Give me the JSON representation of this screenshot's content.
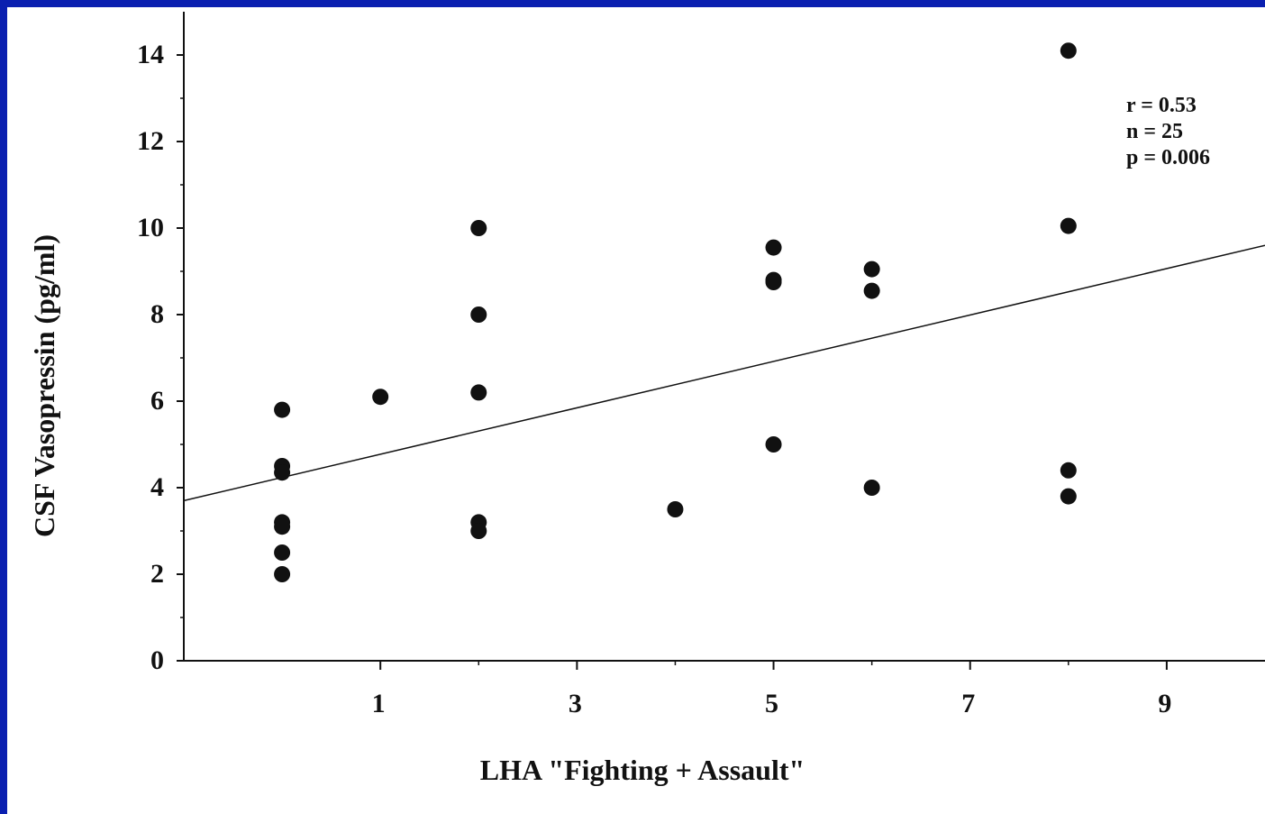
{
  "colors": {
    "background": "#0a1fb0",
    "plot_bg": "#ffffff",
    "ink": "#111111"
  },
  "chart_data": {
    "type": "scatter",
    "title": "",
    "xlabel": "LHA \"Fighting + Assault\"",
    "ylabel": "CSF Vasopressin (pg/ml)",
    "xlim": [
      -1,
      10
    ],
    "ylim": [
      0,
      15
    ],
    "x_ticks": [
      1,
      3,
      5,
      7,
      9
    ],
    "x_minor_ticks": [
      2,
      4,
      6,
      8
    ],
    "y_ticks": [
      0,
      2,
      4,
      6,
      8,
      10,
      12,
      14
    ],
    "y_minor_ticks": [
      1,
      3,
      5,
      7,
      9,
      11,
      13
    ],
    "grid": false,
    "legend": "none",
    "series": [
      {
        "points": [
          [
            0,
            5.8
          ],
          [
            0,
            4.5
          ],
          [
            0,
            4.35
          ],
          [
            0,
            3.2
          ],
          [
            0,
            3.1
          ],
          [
            0,
            2.5
          ],
          [
            0,
            2.0
          ],
          [
            1,
            6.1
          ],
          [
            2,
            10.0
          ],
          [
            2,
            8.0
          ],
          [
            2,
            6.2
          ],
          [
            2,
            3.2
          ],
          [
            2,
            3.0
          ],
          [
            4,
            3.5
          ],
          [
            5,
            9.55
          ],
          [
            5,
            8.8
          ],
          [
            5,
            8.75
          ],
          [
            5,
            5.0
          ],
          [
            6,
            9.05
          ],
          [
            6,
            8.55
          ],
          [
            6,
            4.0
          ],
          [
            8,
            14.1
          ],
          [
            8,
            10.05
          ],
          [
            8,
            4.4
          ],
          [
            8,
            3.8
          ]
        ]
      }
    ],
    "regression_line": {
      "from": [
        -1,
        3.7
      ],
      "to": [
        10,
        9.6
      ]
    },
    "annotations": [
      "r = 0.53",
      "n = 25",
      "p = 0.006"
    ]
  }
}
